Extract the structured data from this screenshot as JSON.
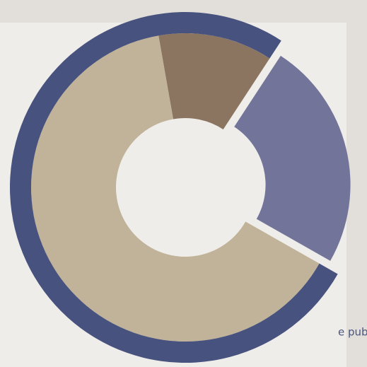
{
  "chart_data": {
    "type": "donut",
    "annotation": "e public",
    "series": [
      {
        "values": [
          12,
          24,
          64
        ],
        "colors": [
          "#8b7560",
          "#727599",
          "#c1b399"
        ]
      },
      {
        "values": [
          24,
          76
        ],
        "colors": [
          "transparent",
          "#47527e"
        ]
      }
    ]
  }
}
